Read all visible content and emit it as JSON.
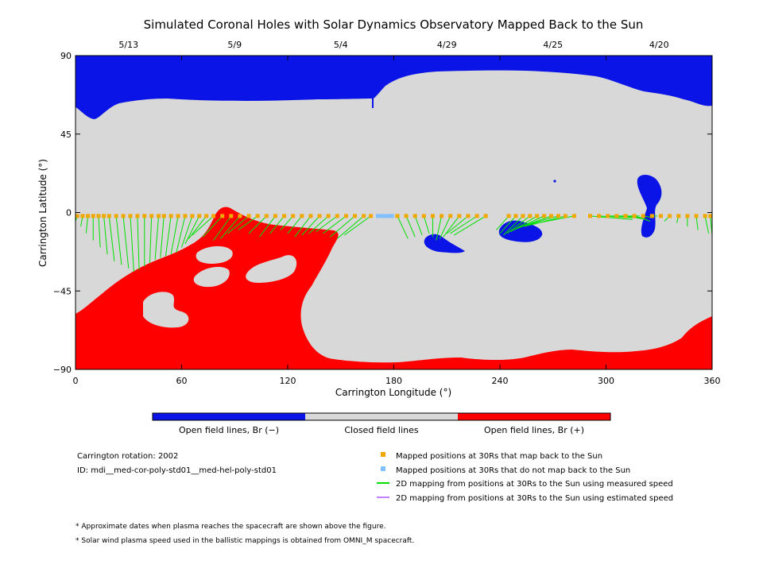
{
  "chart_data": {
    "type": "map",
    "title": "Simulated Coronal Holes with Solar Dynamics Observatory Mapped Back to the Sun",
    "xlabel": "Carrington Longitude (°)",
    "ylabel": "Carrington Latitude (°)",
    "xlim": [
      0,
      360
    ],
    "ylim": [
      -90,
      90
    ],
    "x_ticks": [
      0,
      60,
      120,
      180,
      240,
      300,
      360
    ],
    "y_ticks": [
      -90,
      -45,
      0,
      45,
      90
    ],
    "y_tick_labels": [
      "−90",
      "−45",
      "0",
      "45",
      "90"
    ],
    "top_dates": [
      {
        "label": "5/13",
        "x": 30
      },
      {
        "label": "5/9",
        "x": 90
      },
      {
        "label": "5/4",
        "x": 150
      },
      {
        "label": "4/29",
        "x": 210
      },
      {
        "label": "4/25",
        "x": 270
      },
      {
        "label": "4/20",
        "x": 330
      }
    ],
    "colorbar": [
      {
        "label": "Open field lines, Br (−)",
        "color": "#0a14e6"
      },
      {
        "label": "Closed field lines",
        "color": "#d8d8d8"
      },
      {
        "label": "Open field lines, Br (+)",
        "color": "#ff0000"
      }
    ],
    "mapped_points": {
      "lat": -2,
      "lon": [
        1,
        4,
        7,
        10,
        13,
        16,
        19,
        23,
        27,
        31,
        35,
        39,
        43,
        47,
        50,
        54,
        58,
        62,
        66,
        70,
        74,
        78,
        83,
        88,
        93,
        98,
        103,
        108,
        113,
        118,
        123,
        128,
        133,
        138,
        143,
        148,
        153,
        158,
        163,
        167,
        182,
        187,
        192,
        197,
        202,
        207,
        212,
        217,
        222,
        227,
        232,
        245,
        249,
        253,
        257,
        261,
        265,
        269,
        273,
        277,
        282,
        291,
        296,
        301,
        306,
        311,
        316,
        321,
        326,
        331,
        336,
        341,
        346,
        351,
        356,
        359
      ],
      "foot_lon": [
        0,
        3,
        6,
        10,
        14,
        18,
        22,
        26,
        30,
        33,
        36,
        39,
        42,
        45,
        48,
        51,
        54,
        57,
        60,
        62,
        64,
        66,
        72,
        78,
        82,
        86,
        92,
        98,
        104,
        110,
        116,
        120,
        124,
        128,
        132,
        136,
        140,
        144,
        148,
        152,
        188,
        192,
        196,
        200,
        202,
        204,
        206,
        208,
        210,
        212,
        214,
        238,
        240,
        242,
        244,
        246,
        248,
        250,
        252,
        254,
        256,
        315,
        317,
        319,
        321,
        323,
        325,
        327,
        329,
        331,
        333,
        340,
        346,
        352,
        358,
        360
      ],
      "foot_lat": [
        -5,
        -8,
        -12,
        -16,
        -20,
        -24,
        -28,
        -30,
        -32,
        -34,
        -33,
        -31,
        -29,
        -27,
        -26,
        -25,
        -24,
        -23,
        -20,
        -18,
        -15,
        -13,
        -14,
        -16,
        -15,
        -12,
        -10,
        -12,
        -14,
        -12,
        -10,
        -12,
        -14,
        -13,
        -12,
        -11,
        -12,
        -14,
        -15,
        -13,
        -15,
        -14,
        -13,
        -12,
        -14,
        -16,
        -15,
        -14,
        -12,
        -12,
        -13,
        -10,
        -12,
        -13,
        -12,
        -11,
        -10,
        -9,
        -8,
        -8,
        -7,
        -4,
        -3,
        -2,
        -3,
        -4,
        -5,
        -3,
        -2,
        -3,
        -5,
        -6,
        -8,
        -10,
        -12,
        -13
      ]
    },
    "unmapped_points": {
      "lat": -2,
      "lon": [
        171,
        173,
        175,
        177,
        179
      ]
    },
    "legend": [
      {
        "label": "Mapped positions at 30Rs that map back to the Sun",
        "color": "#f0a800",
        "kind": "square"
      },
      {
        "label": "Mapped positions at 30Rs that do not map back to the Sun",
        "color": "#80c0ff",
        "kind": "square"
      },
      {
        "label": "2D mapping from positions at 30Rs to the Sun using measured speed",
        "color": "#00e000",
        "kind": "line"
      },
      {
        "label": "2D mapping from positions at 30Rs to the Sun using estimated speed",
        "color": "#c080ff",
        "kind": "line"
      }
    ],
    "info": {
      "rotation": "Carrington rotation: 2002",
      "id": "ID: mdi__med-cor-poly-std01__med-hel-poly-std01"
    },
    "footnotes": [
      "* Approximate dates when plasma reaches the spacecraft are shown above the figure.",
      "* Solar wind plasma speed used in the ballistic mappings is obtained from OMNI_M spacecraft."
    ]
  }
}
